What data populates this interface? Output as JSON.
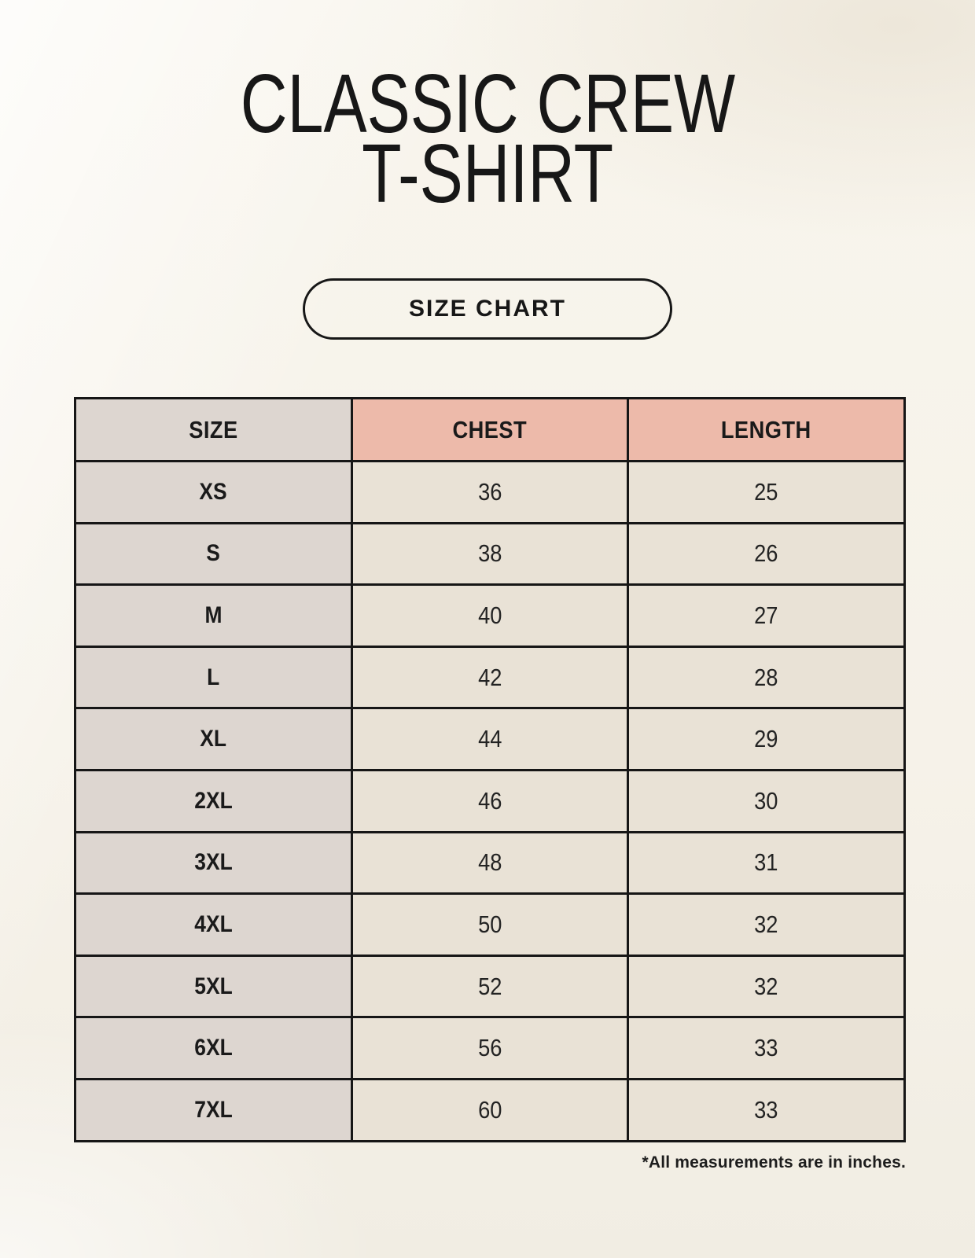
{
  "page": {
    "title_line1": "CLASSIC CREW",
    "title_line2": "T-SHIRT",
    "badge_label": "SIZE CHART",
    "footnote": "*All measurements are in inches."
  },
  "colors": {
    "background": "#f6f2e9",
    "header_accent": "#edbaaa",
    "header_neutral": "#ddd6d0",
    "row_label_background": "#ddd6d0",
    "data_cell_background": "#e9e2d6",
    "border": "#161616",
    "text": "#1c1c1c"
  },
  "chart_data": {
    "type": "table",
    "title": "CLASSIC CREW T-SHIRT",
    "columns": [
      "SIZE",
      "CHEST",
      "LENGTH"
    ],
    "rows": [
      [
        "XS",
        36,
        25
      ],
      [
        "S",
        38,
        26
      ],
      [
        "M",
        40,
        27
      ],
      [
        "L",
        42,
        28
      ],
      [
        "XL",
        44,
        29
      ],
      [
        "2XL",
        46,
        30
      ],
      [
        "3XL",
        48,
        31
      ],
      [
        "4XL",
        50,
        32
      ],
      [
        "5XL",
        52,
        32
      ],
      [
        "6XL",
        56,
        33
      ],
      [
        "7XL",
        60,
        33
      ]
    ],
    "note": "*All measurements are in inches.",
    "units": "inches"
  }
}
